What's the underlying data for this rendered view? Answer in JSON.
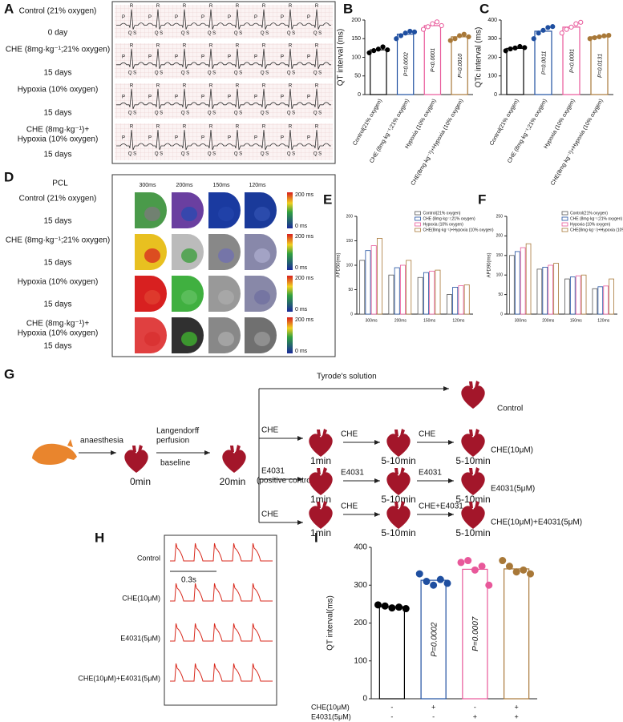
{
  "panel_labels": {
    "a": "A",
    "b": "B",
    "c": "C",
    "d": "D",
    "e": "E",
    "f": "F",
    "g": "G",
    "h": "H",
    "i": "I"
  },
  "panel_a": {
    "rows": [
      {
        "lines": [
          "Control (21% oxygen)"
        ],
        "time": "0 day"
      },
      {
        "lines": [
          "CHE (8mg·kg⁻¹;21% oxygen)"
        ],
        "time": "15 days"
      },
      {
        "lines": [
          "Hypoxia (10% oxygen)"
        ],
        "time": "15 days"
      },
      {
        "lines": [
          "CHE (8mg·kg⁻¹)+",
          "Hypoxia (10% oxygen)"
        ],
        "time": "15 days"
      }
    ],
    "waves": {
      "r": "R",
      "p": "P",
      "qs": "Q S"
    }
  },
  "panel_d": {
    "header": "PCL",
    "columns": [
      "300ms",
      "200ms",
      "150ms",
      "120ms"
    ],
    "rows": [
      {
        "lines": [
          "Control (21% oxygen)"
        ],
        "time": "15 days"
      },
      {
        "lines": [
          "CHE (8mg·kg⁻¹;21% oxygen)"
        ],
        "time": "15 days"
      },
      {
        "lines": [
          "Hypoxia (10% oxygen)"
        ],
        "time": "15 days"
      },
      {
        "lines": [
          "CHE (8mg·kg⁻¹)+",
          "Hypoxia (10% oxygen)"
        ],
        "time": "15 days"
      }
    ],
    "scale": {
      "max": "200 ms",
      "min": "0 ms"
    }
  },
  "panel_g": {
    "anaesthesia": "anaesthesia",
    "perfusion": [
      "Langendorff",
      "perfusion"
    ],
    "baseline": "baseline",
    "t0": "0min",
    "t20": "20min",
    "tyrode": "Tyrode's solution",
    "control": "Control",
    "branches": [
      {
        "entry": [
          "CHE"
        ],
        "arrows": [
          "CHE",
          "CHE"
        ],
        "times": [
          "1min",
          "5-10min",
          "5-10min"
        ],
        "result": "CHE(10μM)"
      },
      {
        "entry": [
          "E4031",
          "(positive control)"
        ],
        "arrows": [
          "E4031",
          "E4031"
        ],
        "times": [
          "1min",
          "5-10min",
          "5-10min"
        ],
        "result": "E4031(5μM)"
      },
      {
        "entry": [
          "CHE"
        ],
        "arrows": [
          "CHE",
          "CHE+E4031"
        ],
        "times": [
          "1min",
          "5-10min",
          "5-10min"
        ],
        "result": "CHE(10μM)+E4031(5μM)"
      }
    ]
  },
  "panel_h": {
    "rows": [
      "Control",
      "CHE(10μM)",
      "E4031(5μM)",
      "CHE(10μM)+E4031(5μM)"
    ],
    "scale_bar": "0.3s"
  },
  "chart_data": [
    {
      "type": "bar",
      "ylabel": "QT interval (ms)",
      "categories": [
        "Control(21% oxygen)",
        "CHE (8mg·kg⁻¹;21% oxygen)",
        "Hypoxia (10% oxygen)",
        "CHE(8mg·kg⁻¹)+Hypoxia (10% oxygen)"
      ],
      "values": [
        120,
        162,
        185,
        155
      ],
      "points": [
        [
          112,
          118,
          122,
          128,
          120
        ],
        [
          150,
          158,
          165,
          170,
          168
        ],
        [
          175,
          182,
          190,
          195,
          185
        ],
        [
          145,
          150,
          158,
          162,
          155
        ]
      ],
      "annotations": [
        null,
        "P=0.0002",
        "P<0.0001",
        "P=0.0010"
      ],
      "colors": [
        "#000000",
        "#1f4fa0",
        "#e8589a",
        "#a87838"
      ],
      "ylim": [
        0,
        200
      ],
      "yticks": [
        0,
        50,
        100,
        150,
        200
      ]
    },
    {
      "type": "bar",
      "ylabel": "QTc interval (ms)",
      "categories": [
        "Control(21% oxygen)",
        "CHE (8mg·kg⁻¹;21% oxygen)",
        "Hypoxia (10% oxygen)",
        "CHE(8mg·kg⁻¹)+Hypoxia (10% oxygen)"
      ],
      "values": [
        248,
        340,
        362,
        310
      ],
      "points": [
        [
          235,
          245,
          250,
          258,
          252
        ],
        [
          300,
          330,
          345,
          360,
          365
        ],
        [
          330,
          350,
          362,
          380,
          388
        ],
        [
          300,
          305,
          310,
          315,
          318
        ]
      ],
      "annotations": [
        null,
        "P=0.0011",
        "P<0.0001",
        "P=0.0131"
      ],
      "colors": [
        "#000000",
        "#1f4fa0",
        "#e8589a",
        "#a87838"
      ],
      "ylim": [
        0,
        400
      ],
      "yticks": [
        0,
        100,
        200,
        300,
        400
      ]
    },
    {
      "type": "grouped_bar",
      "ylabel": "APD50(ms)",
      "categories": [
        "300ms",
        "200ms",
        "150ms",
        "120ms"
      ],
      "series": [
        {
          "name": "Control(21% oxygen)",
          "color": "#555555",
          "values": [
            110,
            80,
            75,
            40
          ]
        },
        {
          "name": "CHE (8mg·kg⁻¹;21% oxygen)",
          "color": "#1f4fa0",
          "values": [
            130,
            95,
            85,
            55
          ]
        },
        {
          "name": "Hypoxia (10% oxygen)",
          "color": "#e8589a",
          "values": [
            140,
            100,
            88,
            58
          ]
        },
        {
          "name": "CHE(8mg·kg⁻¹)+Hypoxia (10% oxygen)",
          "color": "#a87838",
          "values": [
            155,
            110,
            90,
            60
          ]
        }
      ],
      "ylim": [
        0,
        200
      ],
      "yticks": [
        0,
        50,
        100,
        150,
        200
      ]
    },
    {
      "type": "grouped_bar",
      "ylabel": "APD90(ms)",
      "categories": [
        "300ms",
        "200ms",
        "150ms",
        "120ms"
      ],
      "series": [
        {
          "name": "Control(21% oxygen)",
          "color": "#555555",
          "values": [
            150,
            115,
            90,
            65
          ]
        },
        {
          "name": "CHE (8mg·kg⁻¹;21% oxygen)",
          "color": "#1f4fa0",
          "values": [
            160,
            120,
            95,
            70
          ]
        },
        {
          "name": "Hypoxia (10% oxygen)",
          "color": "#e8589a",
          "values": [
            170,
            125,
            98,
            72
          ]
        },
        {
          "name": "CHE(8mg·kg⁻¹)+Hypoxia (10% oxygen)",
          "color": "#a87838",
          "values": [
            180,
            130,
            100,
            90
          ]
        }
      ],
      "ylim": [
        0,
        250
      ],
      "yticks": [
        0,
        50,
        100,
        150,
        200,
        250
      ]
    },
    {
      "type": "bar",
      "ylabel": "QT interval(ms)",
      "values": [
        243,
        313,
        342,
        343
      ],
      "points": [
        [
          248,
          245,
          240,
          242,
          238
        ],
        [
          330,
          310,
          300,
          315,
          305
        ],
        [
          360,
          365,
          340,
          350,
          300
        ],
        [
          365,
          350,
          335,
          340,
          330
        ]
      ],
      "annotations": [
        null,
        "P=0.0002",
        "P=0.0007",
        null
      ],
      "colors": [
        "#000000",
        "#1f4fa0",
        "#e8589a",
        "#a87838"
      ],
      "ylim": [
        0,
        400
      ],
      "yticks": [
        0,
        100,
        200,
        300,
        400
      ],
      "conditions": [
        {
          "name": "CHE(10μM)",
          "signs": [
            "-",
            "+",
            "-",
            "+"
          ]
        },
        {
          "name": "E4031(5μM)",
          "signs": [
            "-",
            "-",
            "+",
            "+"
          ]
        }
      ]
    }
  ]
}
